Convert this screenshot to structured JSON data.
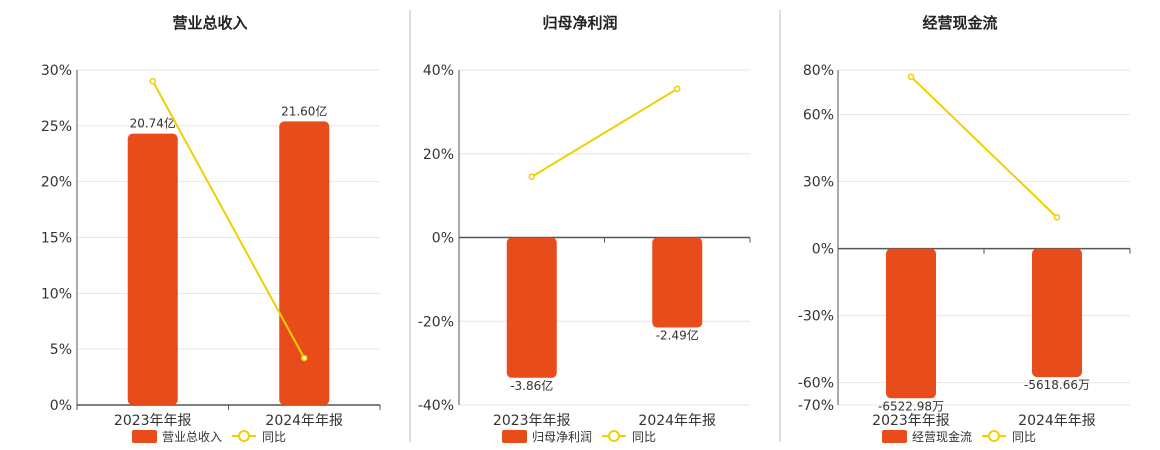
{
  "colors": {
    "bar": "#E84C1B",
    "line": "#F0D000",
    "grid": "#E6E6E6",
    "axis": "#555555",
    "divider": "#BBBBBB"
  },
  "chart_data": [
    {
      "type": "bar",
      "title": "营业总收入",
      "categories": [
        "2023年年报",
        "2024年年报"
      ],
      "ylim": [
        0,
        30
      ],
      "yticks": [
        0,
        5,
        10,
        15,
        20,
        25,
        30
      ],
      "tick_suffix": "%",
      "series": [
        {
          "name": "营业总收入",
          "kind": "bar",
          "values": [
            24.3,
            25.4
          ],
          "labels": [
            "20.74亿",
            "21.60亿"
          ]
        },
        {
          "name": "同比",
          "kind": "line",
          "values": [
            29.0,
            4.2
          ]
        }
      ],
      "legend": "bottom",
      "grid": true
    },
    {
      "type": "bar",
      "title": "归母净利润",
      "categories": [
        "2023年年报",
        "2024年年报"
      ],
      "ylim": [
        -40,
        40
      ],
      "yticks": [
        -40,
        -20,
        0,
        20,
        40
      ],
      "tick_suffix": "%",
      "series": [
        {
          "name": "归母净利润",
          "kind": "bar",
          "values": [
            -33.5,
            -21.5
          ],
          "labels": [
            "-3.86亿",
            "-2.49亿"
          ]
        },
        {
          "name": "同比",
          "kind": "line",
          "values": [
            14.5,
            35.5
          ]
        }
      ],
      "legend": "bottom",
      "grid": true
    },
    {
      "type": "bar",
      "title": "经营现金流",
      "categories": [
        "2023年年报",
        "2024年年报"
      ],
      "ylim": [
        -70,
        80
      ],
      "yticks": [
        -70,
        -60,
        -30,
        0,
        30,
        60,
        80
      ],
      "tick_suffix": "%",
      "series": [
        {
          "name": "经营现金流",
          "kind": "bar",
          "values": [
            -67.0,
            -57.5
          ],
          "labels": [
            "-6522.98万",
            "-5618.66万"
          ]
        },
        {
          "name": "同比",
          "kind": "line",
          "values": [
            77.0,
            14.0
          ]
        }
      ],
      "legend": "bottom",
      "grid": true
    }
  ]
}
